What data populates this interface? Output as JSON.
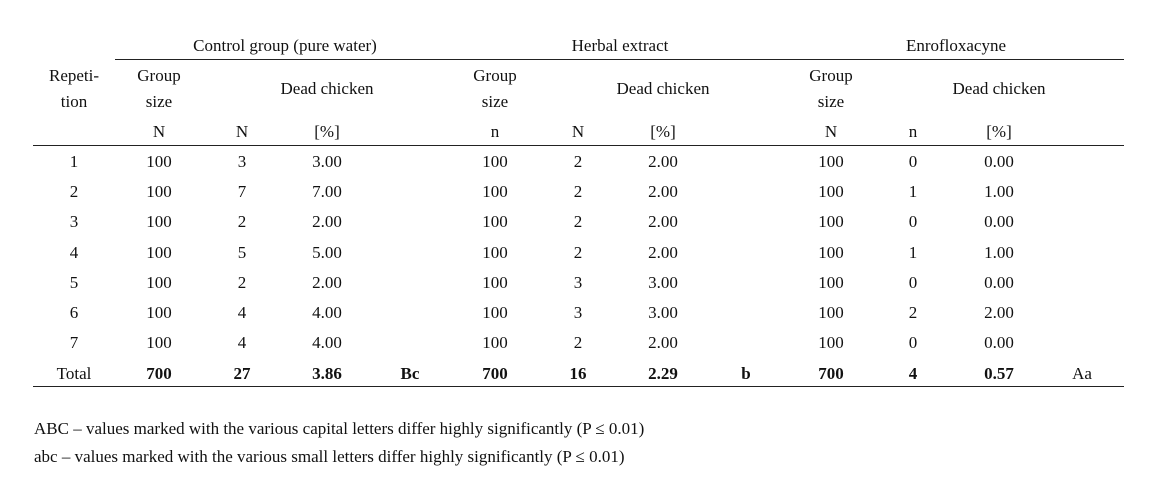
{
  "groups": [
    "Control group (pure water)",
    "Herbal extract",
    "Enrofloxacyne"
  ],
  "header": {
    "repetition": [
      "Repeti-",
      "tion"
    ],
    "group_size": [
      "Group",
      "size"
    ],
    "dead_chicken": "Dead chicken",
    "units": {
      "control": [
        "N",
        "N",
        "[%]"
      ],
      "herbal": [
        "n",
        "N",
        "[%]"
      ],
      "enro": [
        "N",
        "n",
        "[%]"
      ]
    }
  },
  "rows": [
    [
      "1",
      "100",
      "3",
      "3.00",
      "100",
      "2",
      "2.00",
      "100",
      "0",
      "0.00"
    ],
    [
      "2",
      "100",
      "7",
      "7.00",
      "100",
      "2",
      "2.00",
      "100",
      "1",
      "1.00"
    ],
    [
      "3",
      "100",
      "2",
      "2.00",
      "100",
      "2",
      "2.00",
      "100",
      "0",
      "0.00"
    ],
    [
      "4",
      "100",
      "5",
      "5.00",
      "100",
      "2",
      "2.00",
      "100",
      "1",
      "1.00"
    ],
    [
      "5",
      "100",
      "2",
      "2.00",
      "100",
      "3",
      "3.00",
      "100",
      "0",
      "0.00"
    ],
    [
      "6",
      "100",
      "4",
      "4.00",
      "100",
      "3",
      "3.00",
      "100",
      "2",
      "2.00"
    ],
    [
      "7",
      "100",
      "4",
      "4.00",
      "100",
      "2",
      "2.00",
      "100",
      "0",
      "0.00"
    ]
  ],
  "total": {
    "label": "Total",
    "values": [
      "700",
      "27",
      "3.86",
      "Bc",
      "700",
      "16",
      "2.29",
      "b",
      "700",
      "4",
      "0.57",
      "Aa"
    ]
  },
  "notes": [
    "ABC – values marked with the various capital letters differ highly significantly (P ≤ 0.01)",
    "abc – values marked with the various small letters differ highly significantly (P ≤ 0.01)"
  ]
}
